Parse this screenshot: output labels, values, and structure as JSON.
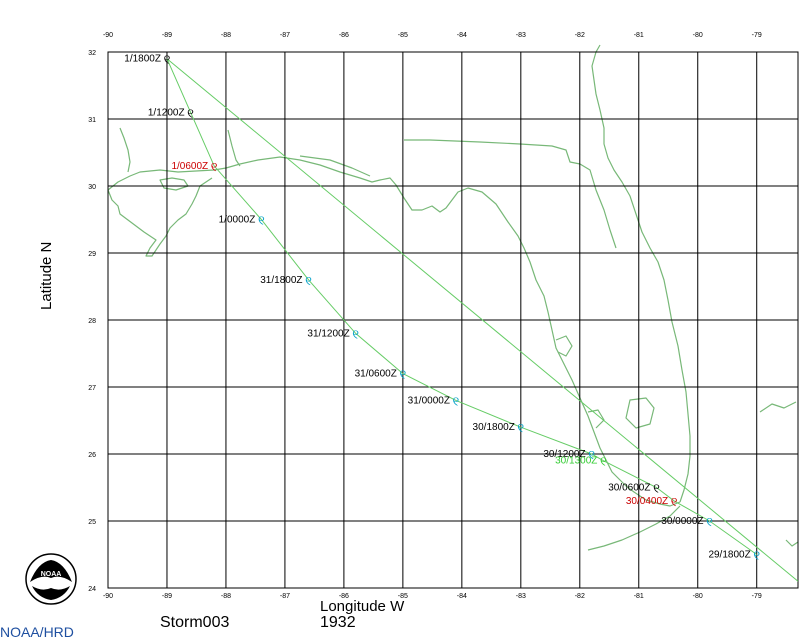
{
  "map": {
    "ylabel": "Latitude N",
    "xlabel": "Longitude W",
    "storm": "Storm003",
    "year": "1932",
    "org": "NOAA/HRD",
    "logo_text": "NOAA",
    "lon_ticks": [
      "-90",
      "-89",
      "-88",
      "-87",
      "-86",
      "-85",
      "-84",
      "-83",
      "-82",
      "-81",
      "-80",
      "-79"
    ],
    "lat_ticks": [
      "24",
      "25",
      "26",
      "27",
      "28",
      "29",
      "30",
      "31",
      "32"
    ],
    "colors": {
      "coast": "#78b878",
      "track": "#66cc66",
      "grid": "#000000",
      "hurricane": "#00a0c8",
      "tropical_storm": "#33cc33",
      "landfall": "#cc0000",
      "extratropical": "#000000"
    }
  },
  "chart_data": {
    "type": "scatter",
    "title": "",
    "xlabel": "Longitude W",
    "ylabel": "Latitude N",
    "xlim": [
      -90,
      -78.3
    ],
    "ylim": [
      24,
      32
    ],
    "grid": true,
    "track": [
      {
        "label": "29/1800Z",
        "lon": -79.0,
        "lat": 24.5,
        "status": "hurricane"
      },
      {
        "label": "30/0000Z",
        "lon": -79.8,
        "lat": 25.0,
        "status": "hurricane"
      },
      {
        "label": "30/0400Z",
        "lon": -80.4,
        "lat": 25.3,
        "status": "landfall"
      },
      {
        "label": "30/0600Z",
        "lon": -80.7,
        "lat": 25.5,
        "status": "extratropical"
      },
      {
        "label": "30/1200Z",
        "lon": -81.8,
        "lat": 26.0,
        "status": "hurricane"
      },
      {
        "label": "30/1300Z",
        "lon": -81.6,
        "lat": 25.9,
        "status": "tropical_storm"
      },
      {
        "label": "30/1800Z",
        "lon": -83.0,
        "lat": 26.4,
        "status": "hurricane"
      },
      {
        "label": "31/0000Z",
        "lon": -84.1,
        "lat": 26.8,
        "status": "hurricane"
      },
      {
        "label": "31/0600Z",
        "lon": -85.0,
        "lat": 27.2,
        "status": "hurricane"
      },
      {
        "label": "31/1200Z",
        "lon": -85.8,
        "lat": 27.8,
        "status": "hurricane"
      },
      {
        "label": "31/1800Z",
        "lon": -86.6,
        "lat": 28.6,
        "status": "hurricane"
      },
      {
        "label": "1/0000Z",
        "lon": -87.4,
        "lat": 29.5,
        "status": "hurricane"
      },
      {
        "label": "1/0600Z",
        "lon": -88.2,
        "lat": 30.3,
        "status": "landfall"
      },
      {
        "label": "1/1200Z",
        "lon": -88.6,
        "lat": 31.1,
        "status": "extratropical"
      },
      {
        "label": "1/1800Z",
        "lon": -89.0,
        "lat": 31.9,
        "status": "extratropical"
      }
    ]
  }
}
